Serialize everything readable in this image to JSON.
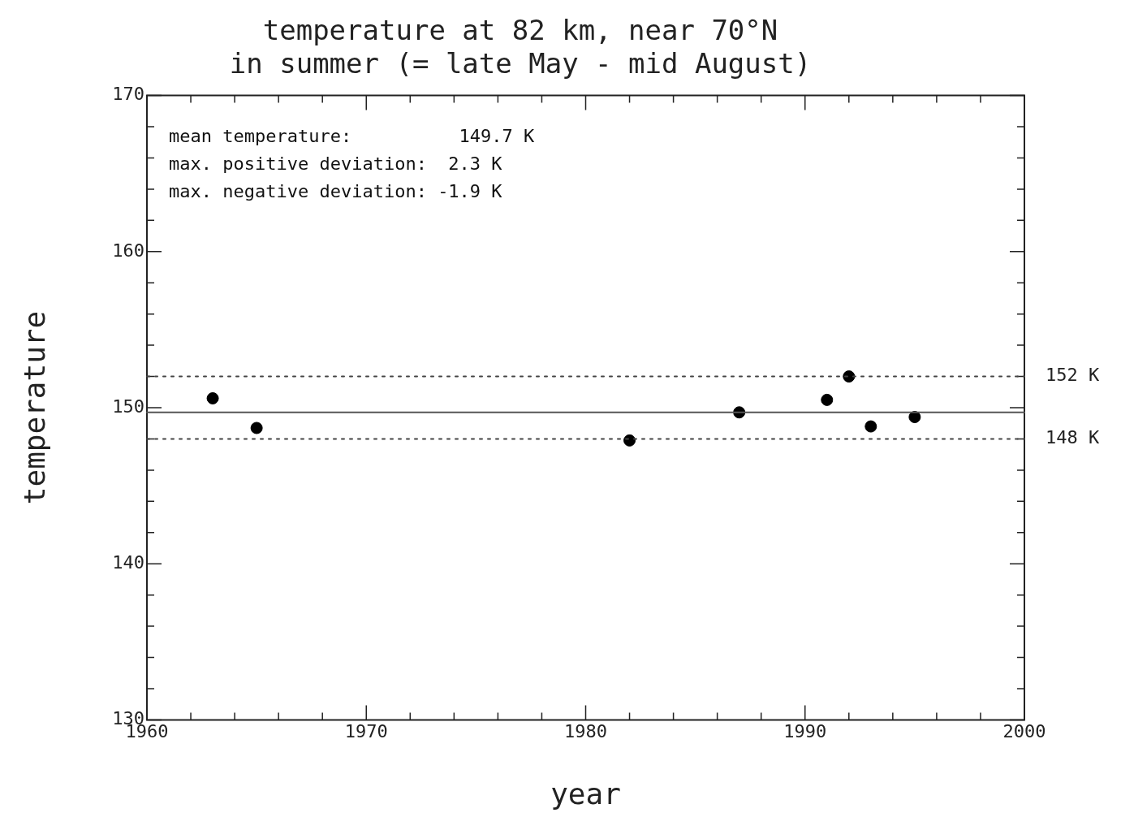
{
  "chart_data": {
    "type": "scatter",
    "title": [
      "temperature at 82 km, near 70°N",
      "in summer (= late May - mid August)"
    ],
    "xlabel": "year",
    "ylabel": "temperature",
    "x": [
      1963,
      1965,
      1982,
      1987,
      1991,
      1992,
      1993,
      1995
    ],
    "values": [
      150.6,
      148.7,
      147.9,
      149.7,
      150.5,
      152.0,
      148.8,
      149.4
    ],
    "color": "#000000",
    "marker": "circle",
    "xlim": [
      1960,
      2000
    ],
    "ylim": [
      130,
      170
    ],
    "xticks": [
      1960,
      {
        "value": 1962,
        "label": null
      },
      {
        "value": 1964,
        "label": null
      },
      {
        "value": 1966,
        "label": null
      },
      {
        "value": 1968,
        "label": null
      },
      1970,
      {
        "value": 1972,
        "label": null
      },
      {
        "value": 1974,
        "label": null
      },
      {
        "value": 1976,
        "label": null
      },
      {
        "value": 1978,
        "label": null
      },
      1980,
      {
        "value": 1982,
        "label": null
      },
      {
        "value": 1984,
        "label": null
      },
      {
        "value": 1986,
        "label": null
      },
      {
        "value": 1988,
        "label": null
      },
      1990,
      {
        "value": 1992,
        "label": null
      },
      {
        "value": 1994,
        "label": null
      },
      {
        "value": 1996,
        "label": null
      },
      {
        "value": 1998,
        "label": null
      },
      2000
    ],
    "yticks": [
      130,
      {
        "value": 132,
        "label": null
      },
      {
        "value": 134,
        "label": null
      },
      {
        "value": 136,
        "label": null
      },
      {
        "value": 138,
        "label": null
      },
      140,
      {
        "value": 142,
        "label": null
      },
      {
        "value": 144,
        "label": null
      },
      {
        "value": 146,
        "label": null
      },
      {
        "value": 148,
        "label": null
      },
      150,
      {
        "value": 152,
        "label": null
      },
      {
        "value": 154,
        "label": null
      },
      {
        "value": 156,
        "label": null
      },
      {
        "value": 158,
        "label": null
      },
      160,
      {
        "value": 162,
        "label": null
      },
      {
        "value": 164,
        "label": null
      },
      {
        "value": 166,
        "label": null
      },
      {
        "value": 168,
        "label": null
      },
      170
    ],
    "ref_lines": [
      {
        "axis": "y",
        "value": 149.7,
        "label": null,
        "line_style": "solid",
        "color": "#555555"
      },
      {
        "axis": "y",
        "value": 152,
        "label": "152 K",
        "line_style": "dotted",
        "color": "#444444"
      },
      {
        "axis": "y",
        "value": 148,
        "label": "148 K",
        "line_style": "dotted",
        "color": "#444444"
      }
    ],
    "annotations": [
      "mean temperature:          149.7 K",
      "max. positive deviation:  2.3 K",
      "max. negative deviation: -1.9 K"
    ],
    "grid": false,
    "legend": false
  }
}
